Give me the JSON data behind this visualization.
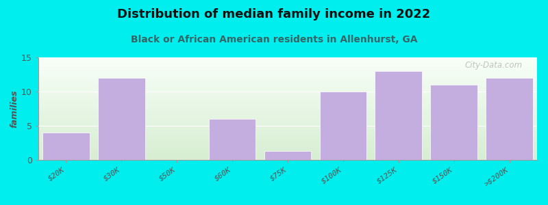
{
  "categories": [
    "$20K",
    "$30K",
    "$50K",
    "$60K",
    "$75K",
    "$100K",
    "$125K",
    "$150K",
    ">$200K"
  ],
  "values": [
    4,
    12,
    0,
    6,
    1.3,
    10,
    13,
    11,
    12
  ],
  "bar_color": "#c4aee0",
  "background_color": "#00eeee",
  "plot_bg_top": "#f8fef8",
  "plot_bg_bottom": "#dff0d8",
  "title": "Distribution of median family income in 2022",
  "subtitle": "Black or African American residents in Allenhurst, GA",
  "ylabel": "families",
  "ylim": [
    0,
    15
  ],
  "yticks": [
    0,
    5,
    10,
    15
  ],
  "title_fontsize": 13,
  "subtitle_fontsize": 10,
  "ylabel_fontsize": 9,
  "tick_fontsize": 8,
  "subtitle_color": "#336666",
  "watermark": "City-Data.com"
}
